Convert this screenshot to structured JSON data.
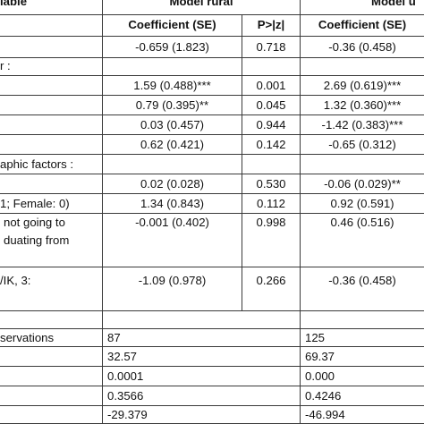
{
  "header": {
    "variable": "iable",
    "model_rural": "Model rural",
    "model_urban": "Model u",
    "coef_se_rural": "Coefficient (SE)",
    "pz_rural": "P>|z|",
    "coef_se_urban": "Coefficient (SE)"
  },
  "rows": [
    {
      "label": "",
      "rc": "-0.659 (1.823)",
      "rp": "0.718",
      "uc": "-0.36 (0.458)"
    },
    {
      "label": "r :",
      "rc": "",
      "rp": "",
      "uc": ""
    },
    {
      "label": "",
      "rc": "1.59 (0.488)***",
      "rp": "0.001",
      "uc": "2.69 (0.619)***"
    },
    {
      "label": "",
      "rc": "0.79 (0.395)**",
      "rp": "0.045",
      "uc": "1.32 (0.360)***"
    },
    {
      "label": "",
      "rc": "0.03 (0.457)",
      "rp": "0.944",
      "uc": "-1.42 (0.383)***"
    },
    {
      "label": "",
      "rc": "0.62 (0.421)",
      "rp": "0.142",
      "uc": "-0.65 (0.312)"
    },
    {
      "label": "aphic factors :",
      "rc": "",
      "rp": "",
      "uc": ""
    },
    {
      "label": "",
      "rc": "0.02 (0.028)",
      "rp": "0.530",
      "uc": "-0.06 (0.029)**"
    },
    {
      "label": "1; Female: 0)",
      "rc": "1.34 (0.843)",
      "rp": "0.112",
      "uc": "0.92 (0.591)"
    },
    {
      "label": "not going to",
      "label2": "duating from",
      "rc": "-0.001 (0.402)",
      "rp": "0.998",
      "uc": "0.46 (0.516)"
    },
    {
      "label": "/IK, 3:",
      "rc": "-1.09 (0.978)",
      "rp": "0.266",
      "uc": "-0.36 (0.458)"
    }
  ],
  "stats": [
    {
      "label": "servations",
      "r": "87",
      "u": "125"
    },
    {
      "label": "",
      "r": "32.57",
      "u": "69.37"
    },
    {
      "label": "",
      "r": "0.0001",
      "u": "0.000"
    },
    {
      "label": "",
      "r": "0.3566",
      "u": "0.4246"
    },
    {
      "label": "",
      "r": "-29.379",
      "u": "-46.994"
    }
  ]
}
